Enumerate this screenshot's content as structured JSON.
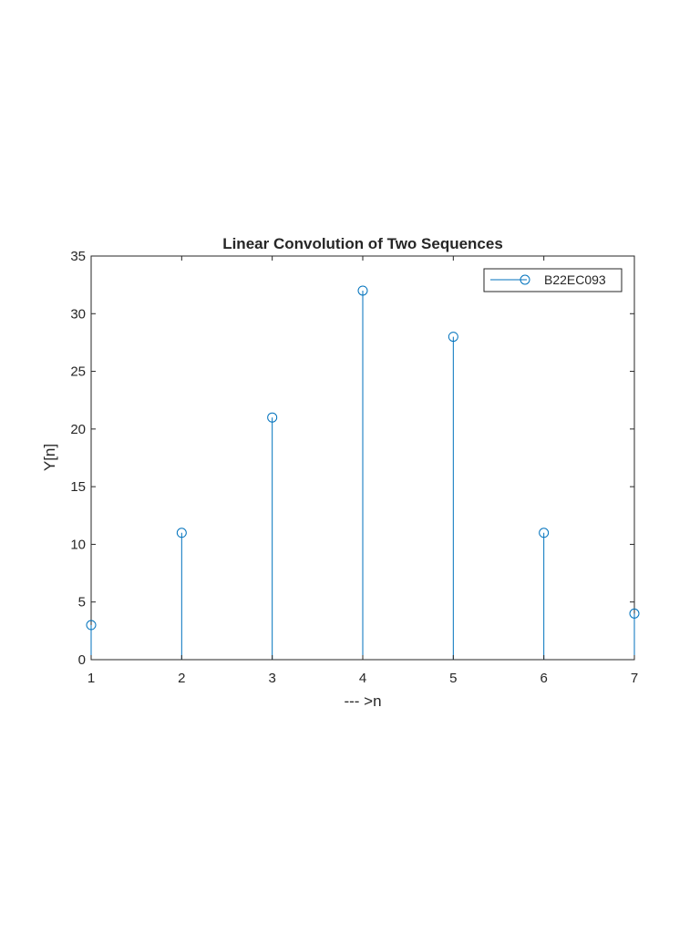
{
  "chart_data": {
    "type": "stem",
    "title": "Linear Convolution of Two Sequences",
    "xlabel": "--- >n",
    "ylabel": "Y[n]",
    "x": [
      1,
      2,
      3,
      4,
      5,
      6,
      7
    ],
    "series": [
      {
        "name": "B22EC093",
        "values": [
          3,
          11,
          21,
          32,
          28,
          11,
          4
        ]
      }
    ],
    "xlim": [
      1,
      7
    ],
    "ylim": [
      0,
      35
    ],
    "xticks": [
      1,
      2,
      3,
      4,
      5,
      6,
      7
    ],
    "yticks": [
      0,
      5,
      10,
      15,
      20,
      25,
      30,
      35
    ],
    "grid": false,
    "legend_position": "top-right",
    "colors": {
      "series": "#0072BD",
      "axes": "#262626",
      "background": "#ffffff"
    }
  }
}
